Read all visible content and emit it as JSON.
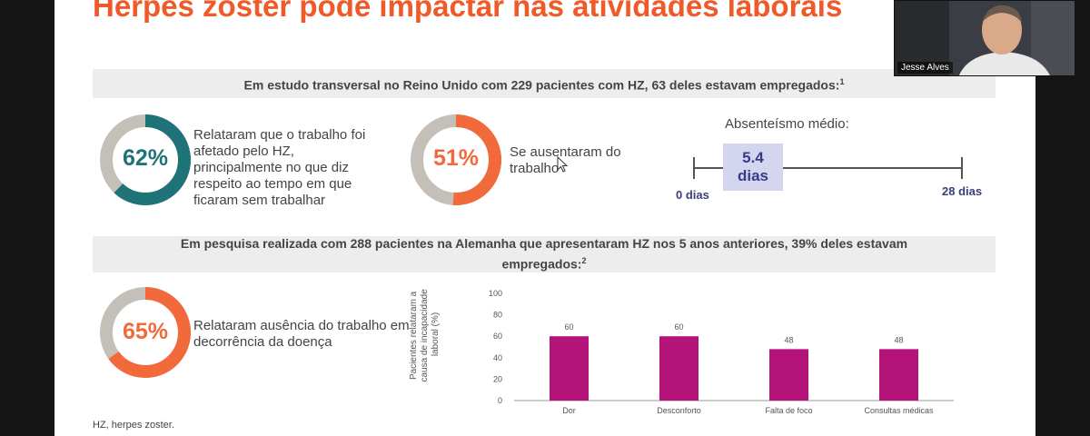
{
  "slide": {
    "title": "Herpes zóster pode impactar nas atividades laborais",
    "band1": {
      "text": "Em estudo transversal no Reino Unido com 229 pacientes com HZ, 63 deles estavam empregados:",
      "ref": "1"
    },
    "band2": {
      "text": "Em pesquisa  realizada com 288 pacientes na Alemanha que apresentaram HZ nos 5 anos anteriores, 39% deles estavam empregados:",
      "ref": "2"
    },
    "stat1": {
      "value": "62%",
      "fraction": 0.62,
      "color": "#1e7378",
      "description": "Relataram que o trabalho foi afetado pelo HZ, principalmente no que diz respeito ao tempo em que ficaram sem trabalhar"
    },
    "stat2": {
      "value": "51%",
      "fraction": 0.51,
      "color": "#f26a3b",
      "description": "Se ausentaram do trabalho"
    },
    "stat3": {
      "value": "65%",
      "fraction": 0.65,
      "color": "#f26a3b",
      "description": "Relataram ausência do trabalho em decorrência da doença"
    },
    "ring_track_color": "#c4c0b9",
    "absenteeism": {
      "title": "Absenteísmo médio:",
      "avg_value": "5.4",
      "avg_unit": "dias",
      "min_label": "0 dias",
      "max_label": "28 dias"
    },
    "footnote": "HZ, herpes zoster."
  },
  "chart_data": {
    "type": "bar",
    "categories": [
      "Dor",
      "Desconforto",
      "Falta de foco",
      "Consultas médicas"
    ],
    "values": [
      60,
      60,
      48,
      48
    ],
    "data_labels": [
      "60",
      "60",
      "48",
      "48"
    ],
    "ylabel": "Pacientes relataram a causa de incapacidade laboral (%)",
    "ylim": [
      0,
      100
    ],
    "yticks": [
      0,
      20,
      40,
      60,
      80,
      100
    ],
    "bar_color": "#b4137a",
    "grid": false
  },
  "webcam": {
    "name": "Jesse Alves"
  }
}
